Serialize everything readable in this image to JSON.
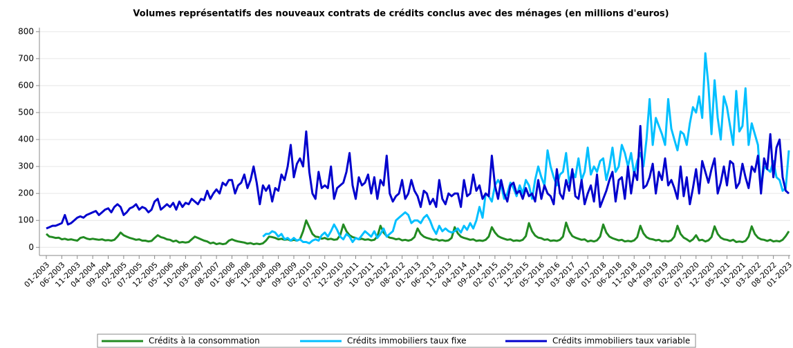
{
  "chart_data": {
    "type": "line",
    "title": "Volumes représentatifs des nouveaux contrats de crédits conclus avec des ménages (en millions d'euros)",
    "categories": [
      "01-2003",
      null,
      null,
      null,
      null,
      "06-2003",
      null,
      null,
      null,
      null,
      "11-2003",
      null,
      null,
      null,
      null,
      "04-2004",
      null,
      null,
      null,
      null,
      "09-2004",
      null,
      null,
      null,
      null,
      "02-2005",
      null,
      null,
      null,
      null,
      "07-2005",
      null,
      null,
      null,
      null,
      "12-2005",
      null,
      null,
      null,
      null,
      "05-2006",
      null,
      null,
      null,
      null,
      "10-2006",
      null,
      null,
      null,
      null,
      "03-2007",
      null,
      null,
      null,
      null,
      "08-2007",
      null,
      null,
      null,
      null,
      "01-2008",
      null,
      null,
      null,
      null,
      "06-2008",
      null,
      null,
      null,
      null,
      "11-2008",
      null,
      null,
      null,
      null,
      "04-2009",
      null,
      null,
      null,
      null,
      "09-2009",
      null,
      null,
      null,
      null,
      "02-2010",
      null,
      null,
      null,
      null,
      "07-2010",
      null,
      null,
      null,
      null,
      "12-2010",
      null,
      null,
      null,
      null,
      "05-2011",
      null,
      null,
      null,
      null,
      "10-2011",
      null,
      null,
      null,
      null,
      "03-2012",
      null,
      null,
      null,
      null,
      "08-2012",
      null,
      null,
      null,
      null,
      "01-2013",
      null,
      null,
      null,
      null,
      "06-2013",
      null,
      null,
      null,
      null,
      "11-2013",
      null,
      null,
      null,
      null,
      "04-2014",
      null,
      null,
      null,
      null,
      "09-2014",
      null,
      null,
      null,
      null,
      "02-2015",
      null,
      null,
      null,
      null,
      "07-2015",
      null,
      null,
      null,
      null,
      "12-2015",
      null,
      null,
      null,
      null,
      "05-2016",
      null,
      null,
      null,
      null,
      "10-2016",
      null,
      null,
      null,
      null,
      "03-2017",
      null,
      null,
      null,
      null,
      "08-2017",
      null,
      null,
      null,
      null,
      "01-2018",
      null,
      null,
      null,
      null,
      "06-2018",
      null,
      null,
      null,
      null,
      "11-2018",
      null,
      null,
      null,
      null,
      "04-2019",
      null,
      null,
      null,
      null,
      "09-2019",
      null,
      null,
      null,
      null,
      "02-2020",
      null,
      null,
      null,
      null,
      "07-2020",
      null,
      null,
      null,
      null,
      "12-2020",
      null,
      null,
      null,
      null,
      "05-2021",
      null,
      null,
      null,
      null,
      "10-2021",
      null,
      null,
      null,
      null,
      "03-2022",
      null,
      null,
      null,
      null,
      "08-2022",
      null,
      null,
      null,
      null,
      "01-2023"
    ],
    "series": [
      {
        "name": "Crédits à la consommation",
        "color": "#228b22",
        "values": [
          50,
          40,
          38,
          35,
          36,
          30,
          32,
          28,
          30,
          27,
          25,
          35,
          38,
          33,
          30,
          32,
          30,
          28,
          30,
          26,
          27,
          25,
          28,
          40,
          55,
          45,
          40,
          35,
          32,
          28,
          30,
          25,
          25,
          22,
          24,
          35,
          45,
          38,
          35,
          30,
          28,
          22,
          25,
          18,
          20,
          18,
          20,
          30,
          40,
          35,
          30,
          25,
          22,
          15,
          18,
          12,
          15,
          12,
          14,
          25,
          30,
          25,
          22,
          20,
          18,
          14,
          16,
          12,
          14,
          12,
          15,
          25,
          40,
          38,
          35,
          30,
          32,
          28,
          30,
          25,
          28,
          25,
          30,
          60,
          100,
          75,
          50,
          40,
          38,
          32,
          35,
          30,
          32,
          28,
          30,
          45,
          85,
          60,
          45,
          38,
          35,
          30,
          32,
          28,
          30,
          26,
          28,
          40,
          80,
          55,
          42,
          36,
          34,
          30,
          32,
          26,
          28,
          25,
          28,
          38,
          70,
          50,
          40,
          35,
          32,
          28,
          30,
          25,
          27,
          24,
          26,
          35,
          75,
          52,
          40,
          35,
          32,
          28,
          30,
          24,
          26,
          24,
          28,
          40,
          75,
          55,
          42,
          36,
          32,
          28,
          30,
          24,
          26,
          24,
          28,
          42,
          90,
          60,
          44,
          36,
          34,
          28,
          30,
          24,
          26,
          24,
          28,
          40,
          92,
          60,
          42,
          36,
          32,
          28,
          30,
          22,
          25,
          22,
          26,
          40,
          85,
          55,
          40,
          34,
          30,
          26,
          28,
          22,
          24,
          22,
          26,
          38,
          80,
          52,
          38,
          32,
          30,
          26,
          28,
          22,
          24,
          22,
          26,
          40,
          80,
          50,
          36,
          30,
          22,
          30,
          45,
          26,
          28,
          22,
          26,
          38,
          78,
          50,
          36,
          30,
          28,
          24,
          28,
          20,
          22,
          20,
          24,
          40,
          78,
          50,
          36,
          30,
          28,
          24,
          28,
          22,
          24,
          22,
          28,
          42,
          60
        ]
      },
      {
        "name": "Crédits immobiliers taux fixe",
        "color": "#00bfff",
        "values": [
          null,
          null,
          null,
          null,
          null,
          null,
          null,
          null,
          null,
          null,
          null,
          null,
          null,
          null,
          null,
          null,
          null,
          null,
          null,
          null,
          null,
          null,
          null,
          null,
          null,
          null,
          null,
          null,
          null,
          null,
          null,
          null,
          null,
          null,
          null,
          null,
          null,
          null,
          null,
          null,
          null,
          null,
          null,
          null,
          null,
          null,
          null,
          null,
          null,
          null,
          null,
          null,
          null,
          null,
          null,
          null,
          null,
          null,
          null,
          null,
          null,
          null,
          null,
          null,
          null,
          null,
          null,
          null,
          null,
          null,
          40,
          50,
          50,
          60,
          55,
          40,
          50,
          30,
          35,
          25,
          35,
          25,
          30,
          20,
          20,
          15,
          25,
          30,
          25,
          45,
          55,
          40,
          60,
          85,
          65,
          40,
          30,
          50,
          40,
          20,
          35,
          30,
          45,
          60,
          50,
          40,
          60,
          35,
          50,
          70,
          40,
          50,
          60,
          100,
          110,
          120,
          130,
          120,
          90,
          100,
          100,
          90,
          110,
          120,
          100,
          70,
          50,
          80,
          60,
          70,
          60,
          55,
          60,
          70,
          55,
          80,
          65,
          90,
          70,
          100,
          150,
          110,
          200,
          190,
          170,
          230,
          250,
          230,
          180,
          200,
          240,
          220,
          190,
          230,
          200,
          250,
          230,
          180,
          250,
          300,
          260,
          230,
          360,
          300,
          260,
          230,
          270,
          280,
          350,
          240,
          280,
          260,
          330,
          250,
          280,
          370,
          270,
          300,
          280,
          320,
          330,
          250,
          300,
          370,
          280,
          300,
          380,
          350,
          300,
          350,
          270,
          320,
          350,
          300,
          400,
          550,
          380,
          480,
          450,
          420,
          380,
          550,
          440,
          400,
          360,
          430,
          420,
          380,
          460,
          520,
          500,
          560,
          480,
          720,
          600,
          420,
          620,
          480,
          400,
          560,
          520,
          450,
          380,
          580,
          430,
          450,
          590,
          380,
          460,
          420,
          380,
          220,
          300,
          290,
          280,
          320,
          260,
          250,
          210,
          220,
          360
        ]
      },
      {
        "name": "Crédits immobiliers taux variable",
        "color": "#0000cd",
        "values": [
          70,
          75,
          80,
          80,
          85,
          90,
          120,
          85,
          90,
          100,
          110,
          115,
          110,
          120,
          125,
          130,
          135,
          120,
          130,
          140,
          145,
          130,
          150,
          160,
          150,
          120,
          130,
          145,
          150,
          160,
          140,
          150,
          145,
          130,
          140,
          170,
          180,
          140,
          150,
          160,
          150,
          165,
          140,
          170,
          150,
          165,
          160,
          180,
          170,
          160,
          180,
          175,
          210,
          180,
          200,
          215,
          200,
          240,
          230,
          250,
          250,
          200,
          230,
          240,
          270,
          220,
          250,
          300,
          240,
          160,
          230,
          210,
          230,
          170,
          220,
          210,
          270,
          250,
          300,
          380,
          260,
          310,
          330,
          300,
          430,
          280,
          200,
          180,
          280,
          220,
          230,
          220,
          300,
          180,
          220,
          230,
          240,
          280,
          350,
          230,
          180,
          260,
          230,
          240,
          270,
          200,
          260,
          180,
          250,
          230,
          340,
          200,
          170,
          190,
          200,
          250,
          180,
          200,
          250,
          210,
          190,
          150,
          210,
          200,
          160,
          180,
          150,
          250,
          180,
          160,
          200,
          190,
          200,
          200,
          150,
          250,
          190,
          200,
          270,
          210,
          230,
          180,
          200,
          190,
          340,
          230,
          180,
          250,
          200,
          170,
          230,
          240,
          200,
          210,
          180,
          220,
          190,
          200,
          170,
          250,
          180,
          230,
          200,
          190,
          160,
          290,
          200,
          180,
          250,
          210,
          290,
          190,
          180,
          250,
          160,
          200,
          230,
          170,
          270,
          150,
          180,
          210,
          250,
          280,
          170,
          250,
          260,
          180,
          300,
          200,
          280,
          250,
          450,
          220,
          230,
          260,
          310,
          200,
          280,
          250,
          330,
          230,
          250,
          220,
          180,
          300,
          190,
          260,
          160,
          220,
          290,
          200,
          320,
          280,
          240,
          290,
          330,
          200,
          240,
          300,
          230,
          320,
          310,
          220,
          240,
          310,
          260,
          220,
          300,
          280,
          340,
          200,
          330,
          290,
          420,
          260,
          370,
          400,
          260,
          210,
          200
        ]
      }
    ],
    "ylim": [
      -30,
      815
    ],
    "yticks": [
      0,
      100,
      200,
      300,
      400,
      500,
      600,
      700,
      800
    ],
    "grid": true,
    "legend": "bottom"
  }
}
